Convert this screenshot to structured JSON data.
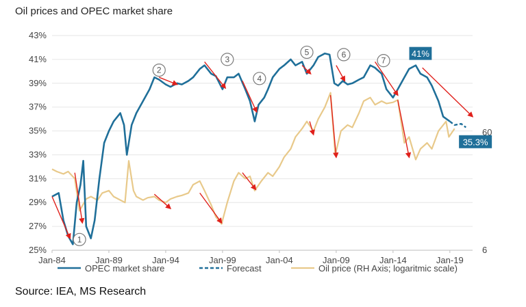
{
  "chart_title": "Oil prices and OPEC market share",
  "source_text": "Source: IEA, MS Research",
  "colors": {
    "opec": "#1f6f99",
    "oil": "#e8c98a",
    "arrow": "#e0201b",
    "grid": "#e6e6e6",
    "badge": "#1f6f99"
  },
  "chart_data": {
    "type": "line",
    "title": "Oil prices and OPEC market share",
    "x_ticks": [
      "Jan-84",
      "Jan-89",
      "Jan-94",
      "Jan-99",
      "Jan-04",
      "Jan-09",
      "Jan-14",
      "Jan-19"
    ],
    "y_left": {
      "ticks": [
        "25%",
        "27%",
        "29%",
        "31%",
        "33%",
        "35%",
        "37%",
        "39%",
        "41%",
        "43%"
      ],
      "range": [
        25,
        43
      ],
      "unit": "%"
    },
    "y_right": {
      "ticks": [
        "6",
        "60"
      ],
      "scale": "log"
    },
    "grid": "horizontal",
    "legend": {
      "position": "bottom",
      "entries": [
        "OPEC market share",
        "Forecast",
        "Oil price (RH Axis; logaritmic scale)"
      ]
    },
    "series": [
      {
        "name": "OPEC market share",
        "axis": "left",
        "points": [
          [
            "1984-01",
            29.5
          ],
          [
            "1984-08",
            29.8
          ],
          [
            "1985-01",
            27.5
          ],
          [
            "1985-06",
            26.2
          ],
          [
            "1985-11",
            25.5
          ],
          [
            "1986-03",
            29.0
          ],
          [
            "1986-07",
            30.5
          ],
          [
            "1986-10",
            32.5
          ],
          [
            "1987-01",
            27.0
          ],
          [
            "1987-06",
            26.0
          ],
          [
            "1987-10",
            27.5
          ],
          [
            "1988-03",
            31.0
          ],
          [
            "1988-08",
            34.0
          ],
          [
            "1989-01",
            35.0
          ],
          [
            "1989-06",
            35.8
          ],
          [
            "1990-01",
            36.5
          ],
          [
            "1990-05",
            35.5
          ],
          [
            "1990-08",
            33.0
          ],
          [
            "1991-01",
            35.5
          ],
          [
            "1991-06",
            36.5
          ],
          [
            "1992-01",
            37.5
          ],
          [
            "1992-08",
            38.5
          ],
          [
            "1993-01",
            39.5
          ],
          [
            "1993-06",
            39.3
          ],
          [
            "1994-01",
            38.9
          ],
          [
            "1994-06",
            38.7
          ],
          [
            "1995-01",
            39.0
          ],
          [
            "1995-06",
            38.9
          ],
          [
            "1996-01",
            39.2
          ],
          [
            "1996-06",
            39.5
          ],
          [
            "1997-01",
            40.2
          ],
          [
            "1997-06",
            40.5
          ],
          [
            "1998-01",
            39.8
          ],
          [
            "1998-06",
            39.6
          ],
          [
            "1999-01",
            38.5
          ],
          [
            "1999-06",
            39.5
          ],
          [
            "2000-01",
            39.5
          ],
          [
            "2000-06",
            39.8
          ],
          [
            "2001-01",
            38.5
          ],
          [
            "2001-06",
            37.5
          ],
          [
            "2001-11",
            35.8
          ],
          [
            "2002-03",
            37.2
          ],
          [
            "2002-09",
            37.8
          ],
          [
            "2003-01",
            38.5
          ],
          [
            "2003-06",
            39.5
          ],
          [
            "2004-01",
            40.2
          ],
          [
            "2004-06",
            40.5
          ],
          [
            "2005-01",
            41.0
          ],
          [
            "2005-06",
            40.5
          ],
          [
            "2006-01",
            40.8
          ],
          [
            "2006-06",
            39.8
          ],
          [
            "2007-01",
            40.5
          ],
          [
            "2007-06",
            41.2
          ],
          [
            "2008-01",
            41.5
          ],
          [
            "2008-06",
            41.4
          ],
          [
            "2008-11",
            39.0
          ],
          [
            "2009-03",
            38.8
          ],
          [
            "2009-08",
            39.2
          ],
          [
            "2010-01",
            38.9
          ],
          [
            "2010-06",
            39.0
          ],
          [
            "2011-01",
            39.3
          ],
          [
            "2011-06",
            39.5
          ],
          [
            "2012-01",
            40.5
          ],
          [
            "2012-06",
            40.3
          ],
          [
            "2013-01",
            39.8
          ],
          [
            "2013-06",
            38.5
          ],
          [
            "2014-01",
            37.8
          ],
          [
            "2014-06",
            38.5
          ],
          [
            "2015-01",
            39.5
          ],
          [
            "2015-06",
            40.2
          ],
          [
            "2016-01",
            40.5
          ],
          [
            "2016-06",
            39.8
          ],
          [
            "2017-01",
            39.5
          ],
          [
            "2017-06",
            38.8
          ],
          [
            "2018-01",
            37.5
          ],
          [
            "2018-06",
            36.2
          ],
          [
            "2019-01",
            35.8
          ]
        ]
      },
      {
        "name": "Forecast",
        "axis": "left",
        "points": [
          [
            "2019-01",
            35.8
          ],
          [
            "2019-06",
            35.5
          ],
          [
            "2020-01",
            35.6
          ],
          [
            "2020-06",
            35.3
          ]
        ]
      },
      {
        "name": "Oil price (RH Axis; logaritmic scale)",
        "axis": "right",
        "points": [
          [
            "1984-01",
            31.8
          ],
          [
            "1984-06",
            31.6
          ],
          [
            "1985-01",
            31.4
          ],
          [
            "1985-06",
            31.6
          ],
          [
            "1986-01",
            31.0
          ],
          [
            "1986-06",
            28.3
          ],
          [
            "1987-01",
            29.3
          ],
          [
            "1987-06",
            29.5
          ],
          [
            "1988-01",
            29.2
          ],
          [
            "1988-06",
            29.8
          ],
          [
            "1989-01",
            30.0
          ],
          [
            "1989-06",
            29.5
          ],
          [
            "1990-06",
            29.0
          ],
          [
            "1990-10",
            32.5
          ],
          [
            "1991-03",
            30.0
          ],
          [
            "1991-06",
            29.5
          ],
          [
            "1992-01",
            29.2
          ],
          [
            "1992-06",
            29.4
          ],
          [
            "1993-01",
            29.5
          ],
          [
            "1993-06",
            29.2
          ],
          [
            "1994-01",
            29.0
          ],
          [
            "1994-06",
            29.3
          ],
          [
            "1995-01",
            29.5
          ],
          [
            "1995-06",
            29.6
          ],
          [
            "1996-01",
            29.8
          ],
          [
            "1996-06",
            30.5
          ],
          [
            "1997-01",
            30.8
          ],
          [
            "1997-06",
            30.0
          ],
          [
            "1998-01",
            28.8
          ],
          [
            "1998-06",
            27.8
          ],
          [
            "1998-12",
            27.2
          ],
          [
            "1999-06",
            29.0
          ],
          [
            "2000-01",
            30.8
          ],
          [
            "2000-06",
            31.5
          ],
          [
            "2001-01",
            31.0
          ],
          [
            "2001-06",
            31.2
          ],
          [
            "2001-11",
            30.0
          ],
          [
            "2002-06",
            30.8
          ],
          [
            "2003-01",
            31.5
          ],
          [
            "2003-06",
            31.2
          ],
          [
            "2004-01",
            32.0
          ],
          [
            "2004-06",
            32.8
          ],
          [
            "2005-01",
            33.5
          ],
          [
            "2005-06",
            34.5
          ],
          [
            "2006-01",
            35.2
          ],
          [
            "2006-06",
            35.8
          ],
          [
            "2007-01",
            35.0
          ],
          [
            "2007-06",
            36.0
          ],
          [
            "2008-01",
            37.0
          ],
          [
            "2008-07",
            38.2
          ],
          [
            "2008-12",
            33.0
          ],
          [
            "2009-06",
            35.0
          ],
          [
            "2010-01",
            35.5
          ],
          [
            "2010-06",
            35.3
          ],
          [
            "2011-01",
            36.5
          ],
          [
            "2011-06",
            37.5
          ],
          [
            "2012-01",
            37.8
          ],
          [
            "2012-06",
            37.2
          ],
          [
            "2013-01",
            37.5
          ],
          [
            "2013-06",
            37.3
          ],
          [
            "2014-01",
            37.4
          ],
          [
            "2014-06",
            37.6
          ],
          [
            "2015-01",
            34.0
          ],
          [
            "2015-06",
            34.5
          ],
          [
            "2016-01",
            32.6
          ],
          [
            "2016-06",
            33.5
          ],
          [
            "2017-01",
            34.0
          ],
          [
            "2017-06",
            33.5
          ],
          [
            "2018-01",
            35.0
          ],
          [
            "2018-09",
            35.8
          ],
          [
            "2018-12",
            34.5
          ],
          [
            "2019-06",
            35.2
          ]
        ]
      }
    ],
    "annotations": [
      {
        "label": "1",
        "x": "1986-06",
        "y": 25.9
      },
      {
        "label": "2",
        "x": "1993-06",
        "y": 40.1
      },
      {
        "label": "3",
        "x": "1999-06",
        "y": 41.0
      },
      {
        "label": "4",
        "x": "2002-04",
        "y": 39.4
      },
      {
        "label": "5",
        "x": "2006-06",
        "y": 41.6
      },
      {
        "label": "6",
        "x": "2009-09",
        "y": 41.4
      },
      {
        "label": "7",
        "x": "2013-03",
        "y": 40.9
      }
    ],
    "arrows": [
      {
        "series": "OPEC market share",
        "from": [
          "1984-01",
          29.5
        ],
        "to": [
          "1985-08",
          26.0
        ]
      },
      {
        "series": "OPEC market share",
        "from": [
          "1993-06",
          39.5
        ],
        "to": [
          "1995-01",
          38.9
        ]
      },
      {
        "series": "OPEC market share",
        "from": [
          "1997-06",
          40.8
        ],
        "to": [
          "1999-04",
          38.6
        ]
      },
      {
        "series": "OPEC market share",
        "from": [
          "2000-10",
          39.2
        ],
        "to": [
          "2002-01",
          36.6
        ]
      },
      {
        "series": "OPEC market share",
        "from": [
          "2006-01",
          40.5
        ],
        "to": [
          "2006-10",
          39.8
        ]
      },
      {
        "series": "OPEC market share",
        "from": [
          "2009-01",
          40.5
        ],
        "to": [
          "2009-10",
          39.2
        ]
      },
      {
        "series": "OPEC market share",
        "from": [
          "2012-06",
          40.8
        ],
        "to": [
          "2014-06",
          38.0
        ]
      },
      {
        "series": "OPEC market share",
        "from": [
          "2016-08",
          40.3
        ],
        "to": [
          "2021-01",
          36.2
        ]
      },
      {
        "series": "Oil price (RH Axis; logaritmic scale)",
        "from": [
          "1986-01",
          31.5
        ],
        "to": [
          "1986-09",
          27.3
        ]
      },
      {
        "series": "Oil price (RH Axis; logaritmic scale)",
        "from": [
          "1993-01",
          29.7
        ],
        "to": [
          "1994-06",
          28.5
        ]
      },
      {
        "series": "Oil price (RH Axis; logaritmic scale)",
        "from": [
          "1997-01",
          29.8
        ],
        "to": [
          "1998-12",
          27.3
        ]
      },
      {
        "series": "Oil price (RH Axis; logaritmic scale)",
        "from": [
          "2000-10",
          31.5
        ],
        "to": [
          "2001-12",
          30.1
        ]
      },
      {
        "series": "Oil price (RH Axis; logaritmic scale)",
        "from": [
          "2006-09",
          35.8
        ],
        "to": [
          "2007-01",
          34.7
        ]
      },
      {
        "series": "Oil price (RH Axis; logaritmic scale)",
        "from": [
          "2008-07",
          38.0
        ],
        "to": [
          "2009-01",
          32.8
        ]
      },
      {
        "series": "Oil price (RH Axis; logaritmic scale)",
        "from": [
          "2014-06",
          37.6
        ],
        "to": [
          "2015-06",
          32.8
        ]
      }
    ],
    "labels": [
      {
        "text": "41%",
        "x": "2016-06",
        "y": 41.5
      },
      {
        "text": "35.3%",
        "x": "2021-04",
        "y": 34.1
      }
    ]
  }
}
